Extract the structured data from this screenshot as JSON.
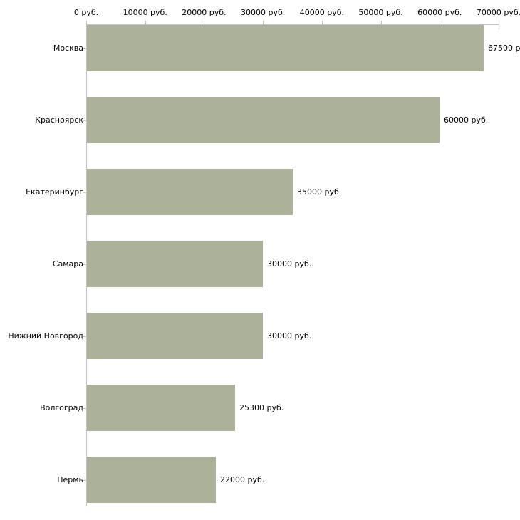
{
  "chart_data": {
    "type": "bar",
    "orientation": "horizontal",
    "title": "",
    "xlabel": "",
    "ylabel": "",
    "categories": [
      "Москва",
      "Красноярск",
      "Екатеринбург",
      "Самара",
      "Нижний Новгород",
      "Волгоград",
      "Пермь"
    ],
    "values": [
      67500,
      60000,
      35000,
      30000,
      30000,
      25300,
      22000
    ],
    "value_labels": [
      "67500 р",
      "60000 руб.",
      "35000 руб.",
      "30000 руб.",
      "30000 руб.",
      "25300 руб.",
      "22000 руб."
    ],
    "x_ticks": [
      "0 руб.",
      "10000 руб.",
      "20000 руб.",
      "30000 руб.",
      "40000 руб.",
      "50000 руб.",
      "60000 руб.",
      "70000 руб."
    ],
    "x_tick_values": [
      0,
      10000,
      20000,
      30000,
      40000,
      50000,
      60000,
      70000
    ],
    "xlim": [
      0,
      70000
    ],
    "grid": false,
    "legend": null,
    "colors": {
      "bar_fill": "#acb199",
      "axis_line": "#c3c3c3",
      "tick_mark": "#c9c98c",
      "end_tick_mark": "#c3c3c3",
      "text": "#000000",
      "background": "#ffffff"
    }
  }
}
